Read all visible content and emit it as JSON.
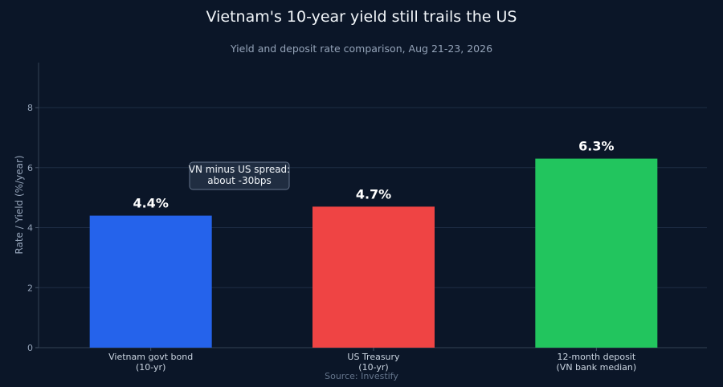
{
  "chart_data": {
    "type": "bar",
    "title": "Vietnam's 10-year yield still trails the US",
    "subtitle": "Yield and deposit rate comparison, Aug 21-23, 2026",
    "ylabel": "Rate / Yield (%/year)",
    "xlabel": "",
    "ylim": [
      0,
      9.5
    ],
    "yticks": [
      0,
      2,
      4,
      6,
      8
    ],
    "grid": true,
    "categories": [
      [
        "Vietnam govt bond",
        "(10-yr)"
      ],
      [
        "US Treasury",
        "(10-yr)"
      ],
      [
        "12-month deposit",
        "(VN bank median)"
      ]
    ],
    "values": [
      4.4,
      4.7,
      6.3
    ],
    "value_labels": [
      "4.4%",
      "4.7%",
      "6.3%"
    ],
    "colors": [
      "#2563eb",
      "#ef4444",
      "#22c55e"
    ],
    "annotation": {
      "lines": [
        "VN minus US spread:",
        "about -30bps"
      ]
    },
    "source": "Source: Investify"
  }
}
